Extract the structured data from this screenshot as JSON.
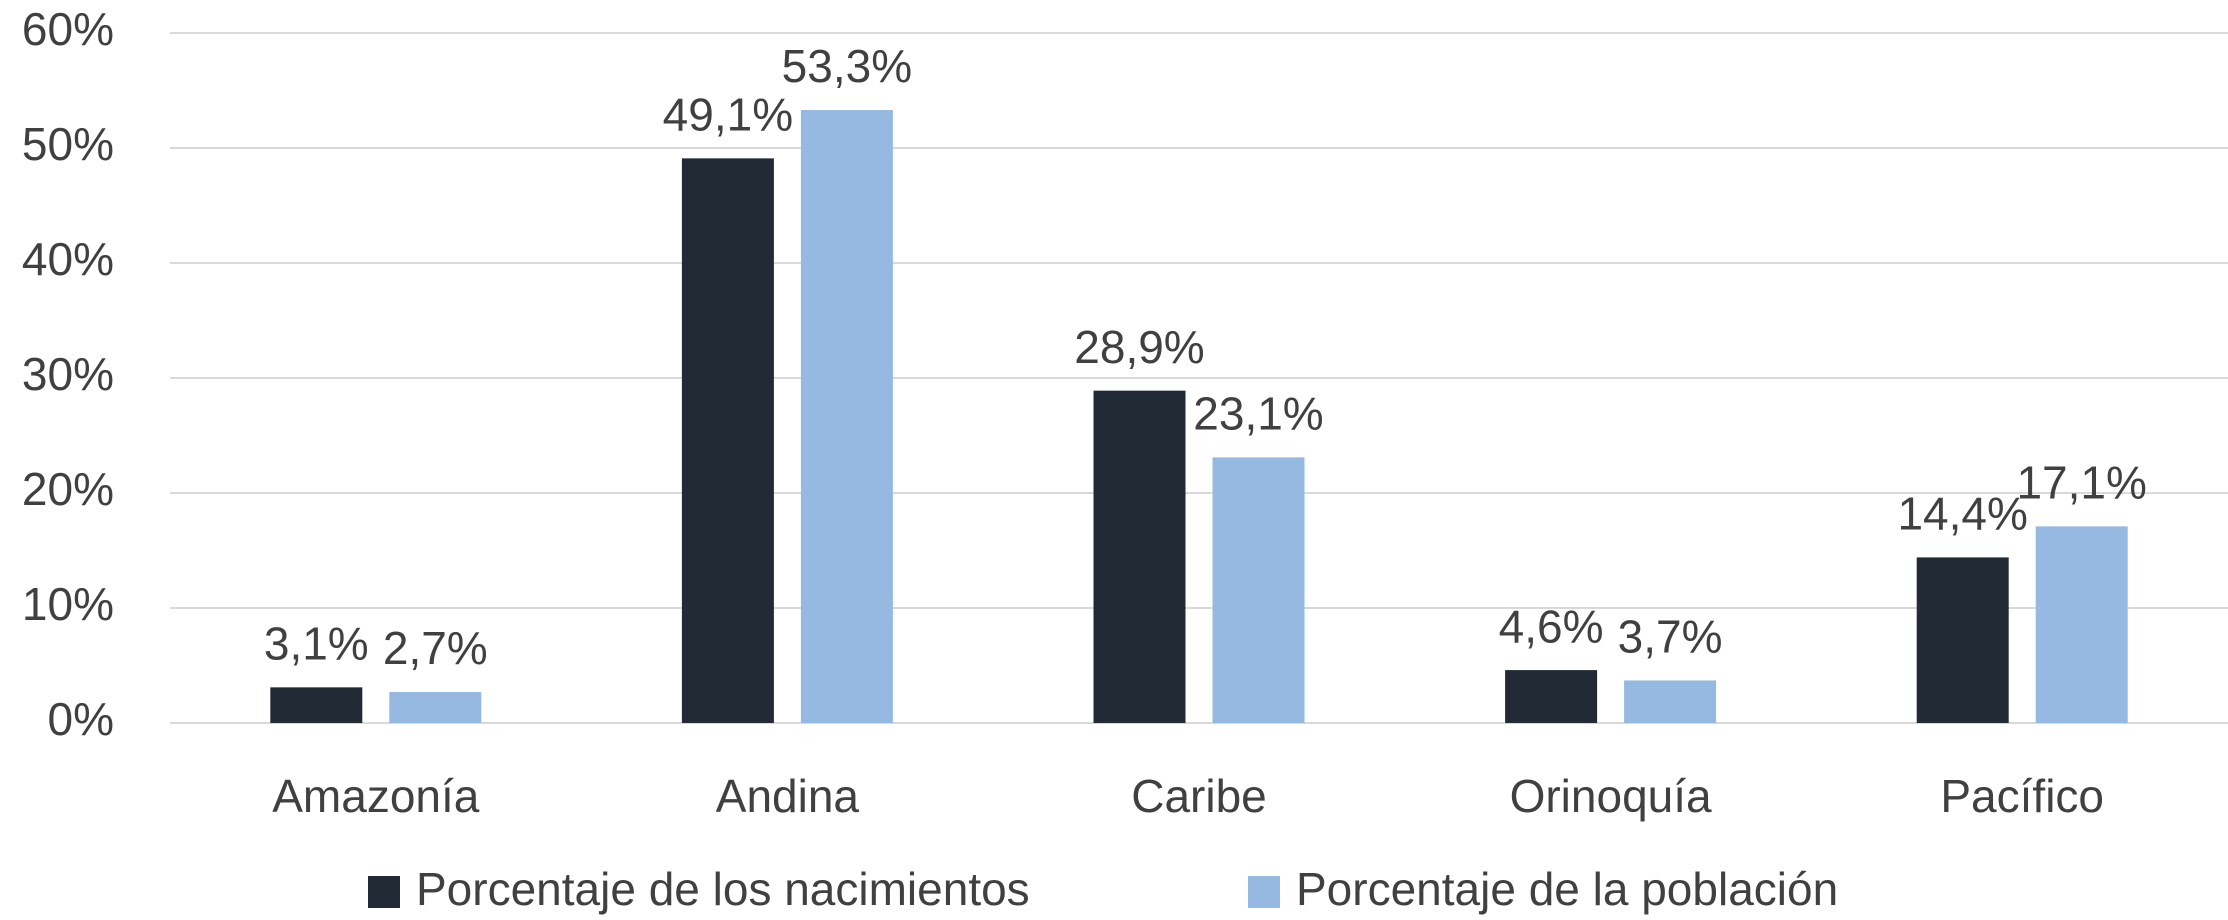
{
  "chart_data": {
    "type": "bar",
    "categories": [
      "Amazonía",
      "Andina",
      "Caribe",
      "Orinoquía",
      "Pacífico"
    ],
    "series": [
      {
        "name": "Porcentaje de los nacimientos",
        "color": "#222a35",
        "values": [
          3.1,
          49.1,
          28.9,
          4.6,
          14.4
        ],
        "value_labels": [
          "3,1%",
          "49,1%",
          "28,9%",
          "4,6%",
          "14,4%"
        ]
      },
      {
        "name": "Porcentaje de la población",
        "color": "#95b9e0",
        "values": [
          2.7,
          53.3,
          23.1,
          3.7,
          17.1
        ],
        "value_labels": [
          "2,7%",
          "53,3%",
          "23,1%",
          "3,7%",
          "17,1%"
        ]
      }
    ],
    "ylim": [
      0,
      60
    ],
    "yticks": [
      {
        "value": 0,
        "label": "0%"
      },
      {
        "value": 10,
        "label": "10%"
      },
      {
        "value": 20,
        "label": "20%"
      },
      {
        "value": 30,
        "label": "30%"
      },
      {
        "value": 40,
        "label": "40%"
      },
      {
        "value": 50,
        "label": "50%"
      },
      {
        "value": 60,
        "label": "60%"
      }
    ],
    "grid": true,
    "legend": "bottom"
  }
}
